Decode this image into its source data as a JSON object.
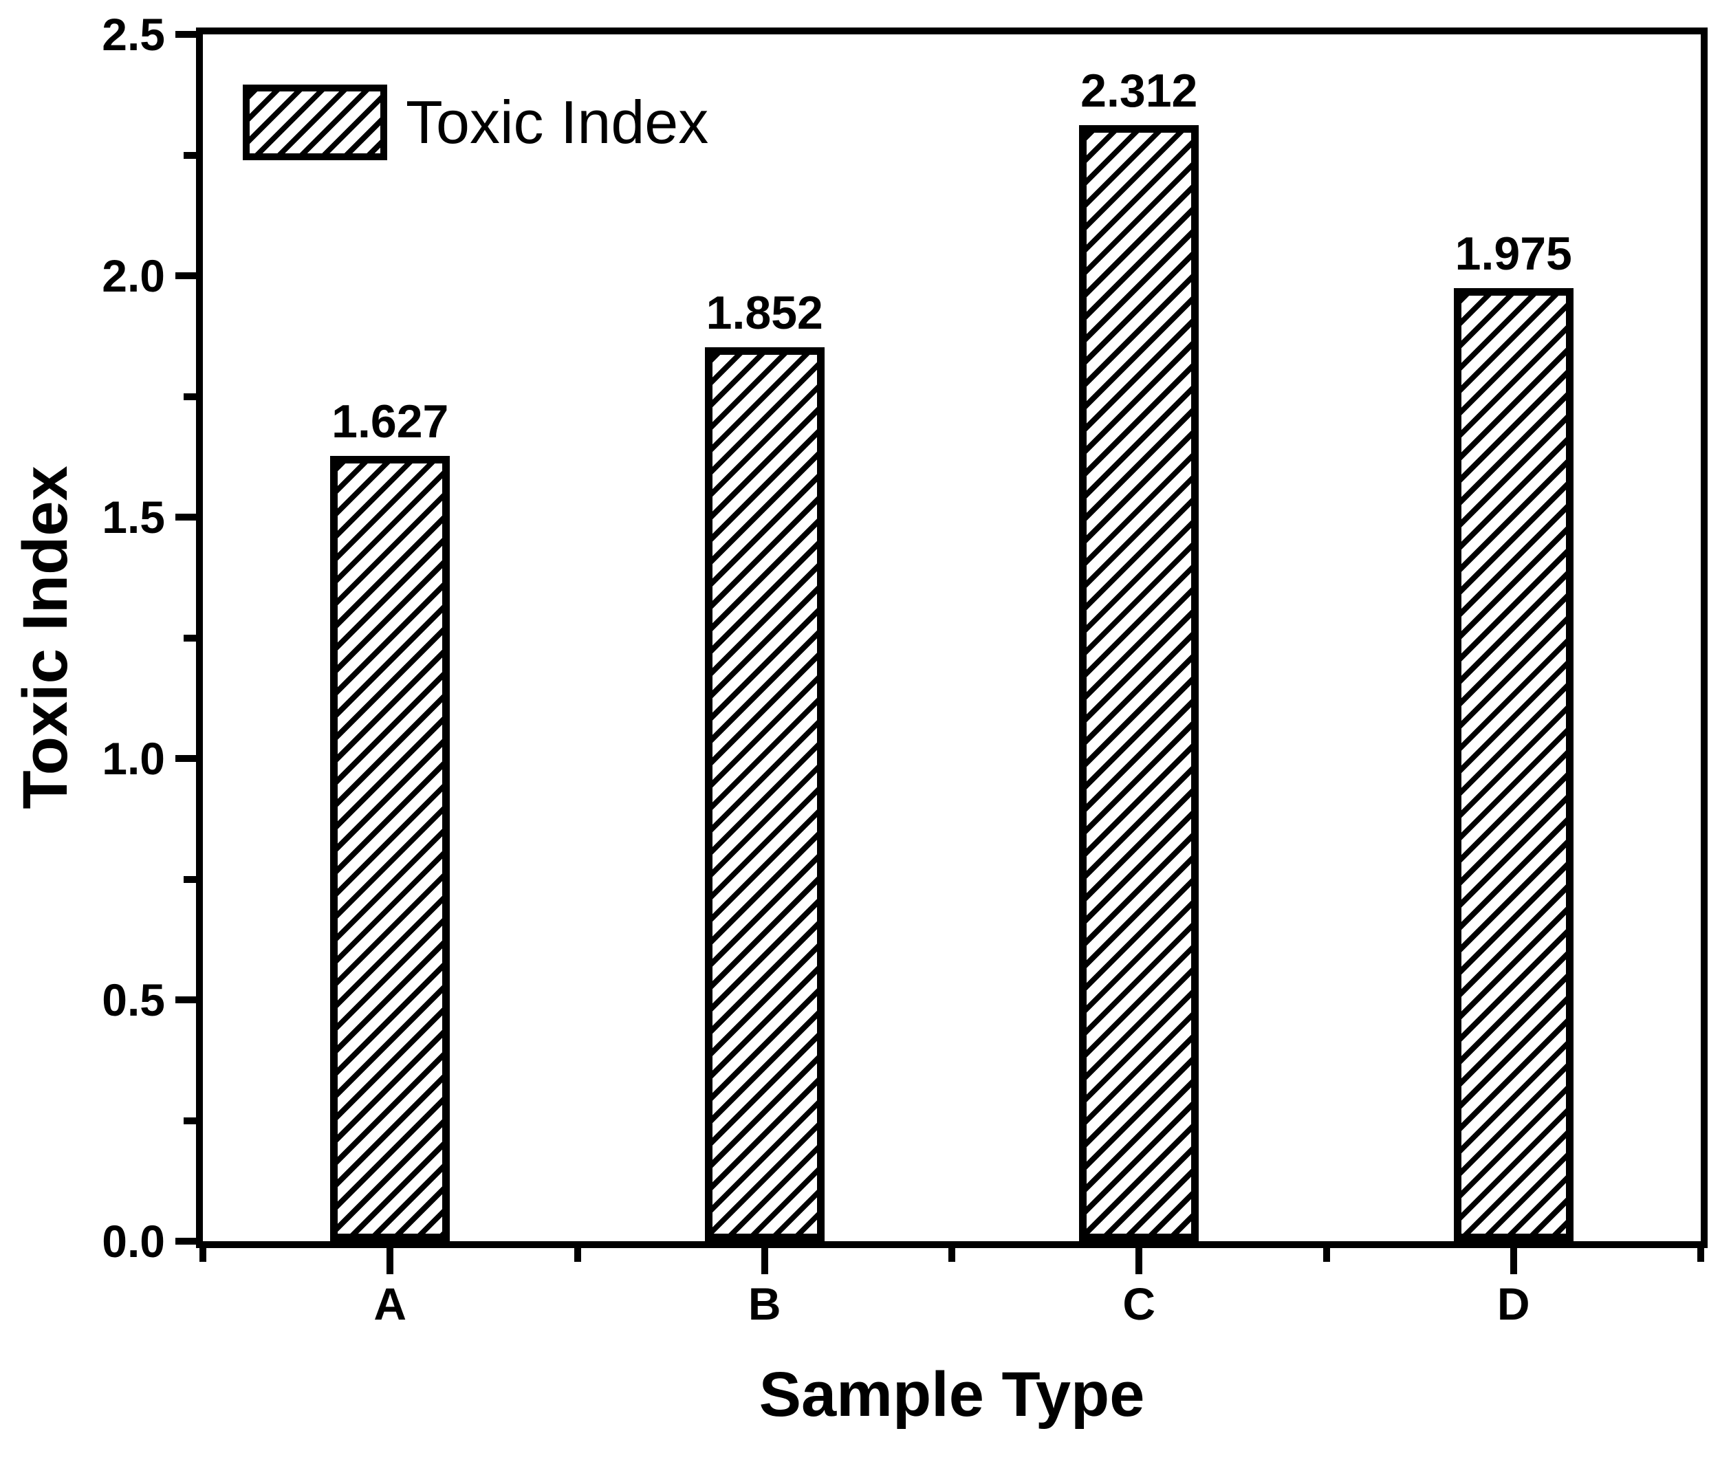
{
  "chart_data": {
    "type": "bar",
    "title": "",
    "categories": [
      "A",
      "B",
      "C",
      "D"
    ],
    "series": [
      {
        "name": "Toxic Index",
        "values": [
          1.627,
          1.852,
          2.312,
          1.975
        ],
        "value_labels": [
          "1.627",
          "1.852",
          "2.312",
          "1.975"
        ]
      }
    ],
    "xlabel": "Sample Type",
    "ylabel": "Toxic Index",
    "ylim": [
      0,
      2.5
    ],
    "y_major_ticks": [
      "0.0",
      "0.5",
      "1.0",
      "1.5",
      "2.0",
      "2.5"
    ],
    "y_minor_step": 0.25,
    "grid": false,
    "legend": {
      "entries": [
        "Toxic Index"
      ],
      "position": "top-left",
      "swatch": "diagonal-hatch"
    },
    "style": {
      "axis_color": "#000000",
      "bar_fill": "#ffffff",
      "bar_hatch_color": "#000000",
      "background": "#ffffff",
      "tick_direction": "out"
    }
  }
}
